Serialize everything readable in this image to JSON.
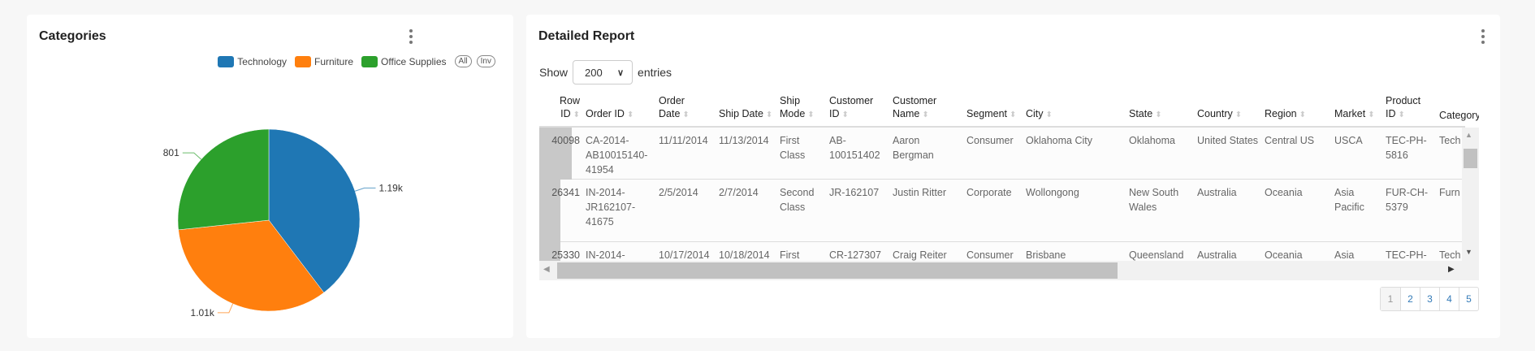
{
  "categories_card": {
    "title": "Categories",
    "legend": [
      {
        "label": "Technology",
        "color": "#1f77b4"
      },
      {
        "label": "Furniture",
        "color": "#ff7f0e"
      },
      {
        "label": "Office Supplies",
        "color": "#2ca02c"
      }
    ],
    "all_label": "All",
    "inv_label": "Inv"
  },
  "chart_data": {
    "type": "pie",
    "categories": [
      "Technology",
      "Furniture",
      "Office Supplies"
    ],
    "values": [
      1190,
      1010,
      801
    ],
    "data_labels": [
      "1.19k",
      "1.01k",
      "801"
    ],
    "colors": [
      "#1f77b4",
      "#ff7f0e",
      "#2ca02c"
    ],
    "legend": "top-right"
  },
  "report": {
    "title": "Detailed Report",
    "show_label": "Show",
    "entries_value": "200",
    "entries_label": "entries",
    "columns": [
      "Row ID",
      "Order ID",
      "Order Date",
      "Ship Date",
      "Ship Mode",
      "Customer ID",
      "Customer Name",
      "Segment",
      "City",
      "State",
      "Country",
      "Region",
      "Market",
      "Product ID",
      "Category"
    ],
    "rows": [
      [
        "40098",
        "CA-2014-AB10015140-41954",
        "11/11/2014",
        "11/13/2014",
        "First Class",
        "AB-100151402",
        "Aaron Bergman",
        "Consumer",
        "Oklahoma City",
        "Oklahoma",
        "United States",
        "Central US",
        "USCA",
        "TEC-PH-5816",
        "Tech"
      ],
      [
        "26341",
        "IN-2014-JR162107-41675",
        "2/5/2014",
        "2/7/2014",
        "Second Class",
        "JR-162107",
        "Justin Ritter",
        "Corporate",
        "Wollongong",
        "New South Wales",
        "Australia",
        "Oceania",
        "Asia Pacific",
        "FUR-CH-5379",
        "Furn"
      ],
      [
        "25330",
        "IN-2014-",
        "10/17/2014",
        "10/18/2014",
        "First",
        "CR-127307",
        "Craig Reiter",
        "Consumer",
        "Brisbane",
        "Queensland",
        "Australia",
        "Oceania",
        "Asia",
        "TEC-PH-",
        "Tech"
      ]
    ],
    "pages": [
      "1",
      "2",
      "3",
      "4",
      "5"
    ]
  }
}
